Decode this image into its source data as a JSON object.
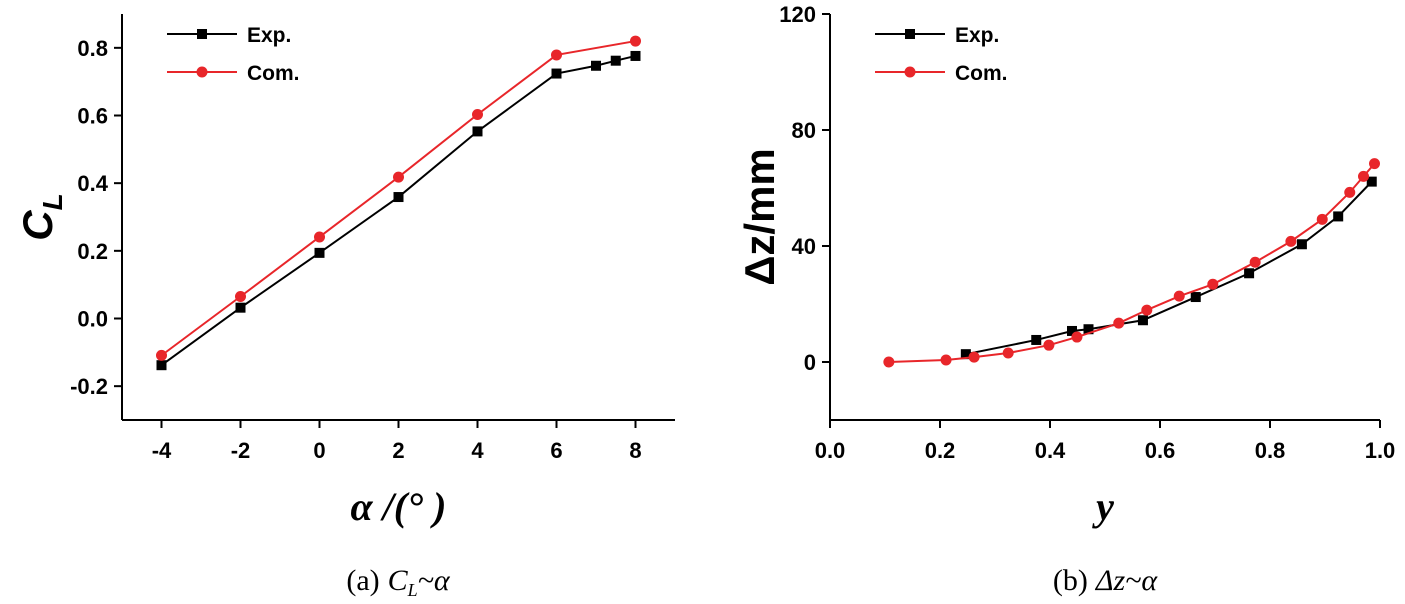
{
  "chart_data": [
    {
      "type": "line",
      "xlabel": "α /(°  )",
      "ylabel": "C",
      "ylabel_sub": "L",
      "caption": {
        "label": "(a)",
        "math": "C",
        "sub": "L",
        "rest": "~α"
      },
      "xlim": [
        -5,
        9
      ],
      "xticks": [
        -4,
        -2,
        0,
        2,
        4,
        6,
        8
      ],
      "ylim": [
        -0.3,
        0.9
      ],
      "yticks": [
        {
          "value": -0.2,
          "label": "-0.2"
        },
        {
          "value": 0,
          "label": "0.0"
        },
        {
          "value": 0.2,
          "label": "0.2"
        },
        {
          "value": 0.4,
          "label": "0.4"
        },
        {
          "value": 0.6,
          "label": "0.6"
        },
        {
          "value": 0.8,
          "label": "0.8"
        }
      ],
      "legend": "upper left",
      "series": [
        {
          "name": "Exp.",
          "color": "#000000",
          "marker": "square",
          "x": [
            -4,
            -2,
            0,
            2,
            4,
            6,
            7,
            7.5,
            8
          ],
          "values": [
            -0.138,
            0.032,
            0.194,
            0.359,
            0.553,
            0.724,
            0.747,
            0.762,
            0.776
          ]
        },
        {
          "name": "Com.",
          "color": "#e8262a",
          "marker": "circle",
          "x": [
            -4,
            -2,
            0,
            2,
            4,
            6,
            8
          ],
          "values": [
            -0.109,
            0.065,
            0.241,
            0.418,
            0.603,
            0.779,
            0.82
          ]
        }
      ]
    },
    {
      "type": "line",
      "xlabel": "y",
      "ylabel": "Δz/mm",
      "caption": {
        "label": "(b)",
        "math": "Δz~α"
      },
      "xlim": [
        0,
        1
      ],
      "xticks": [
        {
          "value": 0,
          "label": "0.0"
        },
        {
          "value": 0.2,
          "label": "0.2"
        },
        {
          "value": 0.4,
          "label": "0.4"
        },
        {
          "value": 0.6,
          "label": "0.6"
        },
        {
          "value": 0.8,
          "label": "0.8"
        },
        {
          "value": 1,
          "label": "1.0"
        }
      ],
      "ylim": [
        -20,
        120
      ],
      "yticks": [
        0,
        40,
        80,
        120
      ],
      "legend": "upper left",
      "series": [
        {
          "name": "Exp.",
          "color": "#000000",
          "marker": "square",
          "x": [
            0.247,
            0.375,
            0.44,
            0.47,
            0.569,
            0.665,
            0.762,
            0.858,
            0.924,
            0.985
          ],
          "values": [
            2.7,
            7.6,
            10.7,
            11.3,
            14.4,
            22.4,
            30.6,
            40.6,
            50.2,
            62.2
          ]
        },
        {
          "name": "Com.",
          "color": "#e8262a",
          "marker": "circle",
          "x": [
            0.107,
            0.211,
            0.262,
            0.324,
            0.398,
            0.449,
            0.525,
            0.576,
            0.635,
            0.696,
            0.773,
            0.838,
            0.895,
            0.945,
            0.97,
            0.99
          ],
          "values": [
            0,
            0.7,
            1.7,
            3.1,
            5.8,
            8.6,
            13.4,
            17.9,
            22.7,
            26.8,
            34.4,
            41.6,
            49.2,
            58.5,
            64,
            68.4
          ]
        }
      ]
    }
  ]
}
